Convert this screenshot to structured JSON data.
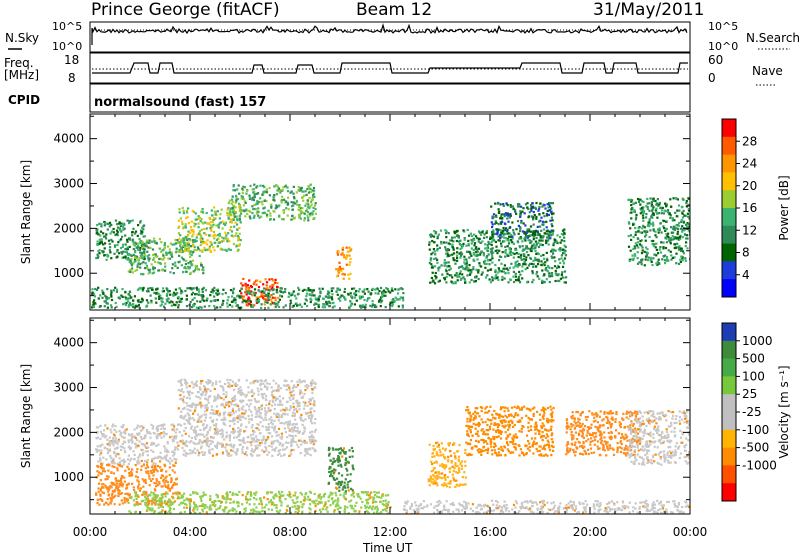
{
  "header": {
    "station": "Prince George (fitACF)",
    "beam": "Beam 12",
    "date": "31/May/2011"
  },
  "noise_panel": {
    "left_label": "N.Sky",
    "right_label": "N.Search",
    "left_top_tick": "10^5",
    "left_bottom_tick": "10^0",
    "right_top_tick": "10^5",
    "right_bottom_tick": "10^0"
  },
  "freq_panel": {
    "left_label_1": "Freq.",
    "left_label_2": "[MHz]",
    "left_top_tick": "18",
    "left_bottom_tick": "8",
    "right_label": "Nave",
    "right_top_tick": "60",
    "right_bottom_tick": "0"
  },
  "cpid_panel": {
    "label": "CPID",
    "program": "normalsound (fast) 157"
  },
  "chart_data": [
    {
      "type": "heatmap",
      "name": "Power",
      "ylabel": "Slant Range [km]",
      "ylim": [
        180,
        4550
      ],
      "yticks": [
        "1000",
        "2000",
        "3000",
        "4000"
      ],
      "xlim": [
        0,
        24
      ],
      "xticks": [
        "00:00",
        "04:00",
        "08:00",
        "12:00",
        "16:00",
        "20:00",
        "00:00"
      ],
      "colorbar_label": "Power [dB]",
      "colorbar_ticks": [
        "28",
        "24",
        "20",
        "16",
        "12",
        "8",
        "4"
      ],
      "colorbar_colors": [
        "#ff0000",
        "#ff5a00",
        "#ff9600",
        "#ffc000",
        "#9acd32",
        "#3cb371",
        "#2e8b57",
        "#006400",
        "#1e3cdc",
        "#0000ff"
      ],
      "echo_regions": [
        {
          "t0": 0.2,
          "t1": 2.2,
          "r0": 1300,
          "r1": 2200,
          "level": 3
        },
        {
          "t0": 1.5,
          "t1": 4.5,
          "r0": 1000,
          "r1": 1800,
          "level": 4
        },
        {
          "t0": 3.5,
          "t1": 6.0,
          "r0": 1500,
          "r1": 2500,
          "level": 5
        },
        {
          "t0": 5.5,
          "t1": 9.0,
          "r0": 2200,
          "r1": 3000,
          "level": 4
        },
        {
          "t0": 6.0,
          "t1": 7.5,
          "r0": 300,
          "r1": 900,
          "level": 8
        },
        {
          "t0": 9.8,
          "t1": 10.4,
          "r0": 900,
          "r1": 1600,
          "level": 7
        },
        {
          "t0": 0.0,
          "t1": 12.5,
          "r0": 250,
          "r1": 700,
          "level": 3
        },
        {
          "t0": 13.5,
          "t1": 19.0,
          "r0": 800,
          "r1": 2000,
          "level": 3
        },
        {
          "t0": 16.0,
          "t1": 18.5,
          "r0": 1800,
          "r1": 2600,
          "level": 2
        },
        {
          "t0": 21.5,
          "t1": 24.0,
          "r0": 1200,
          "r1": 2700,
          "level": 3
        }
      ]
    },
    {
      "type": "heatmap",
      "name": "Velocity",
      "xlabel": "Time UT",
      "ylabel": "Slant Range [km]",
      "ylim": [
        180,
        4550
      ],
      "yticks": [
        "1000",
        "2000",
        "3000",
        "4000"
      ],
      "xlim": [
        0,
        24
      ],
      "xticks": [
        "00:00",
        "04:00",
        "08:00",
        "12:00",
        "16:00",
        "20:00",
        "00:00"
      ],
      "colorbar_label": "Velocity [m s⁻¹]",
      "colorbar_ticks": [
        "1000",
        "500",
        "100",
        "25",
        "-25",
        "-100",
        "-500",
        "-1000"
      ],
      "colorbar_colors": [
        "#1e3cb4",
        "#3c8c3c",
        "#46aa46",
        "#78c83c",
        "#c0c0c0",
        "#c0c0c0",
        "#ffb400",
        "#ff8c00",
        "#ff5000",
        "#ff0000"
      ],
      "echo_regions": [
        {
          "t0": 0.2,
          "t1": 3.5,
          "r0": 1300,
          "r1": 2200,
          "color": "#c8c8c8"
        },
        {
          "t0": 0.2,
          "t1": 3.5,
          "r0": 400,
          "r1": 1300,
          "color": "#ff8c1e"
        },
        {
          "t0": 3.5,
          "t1": 9.0,
          "r0": 1500,
          "r1": 3200,
          "color": "#c8c8c8"
        },
        {
          "t0": 1.5,
          "t1": 12.0,
          "r0": 200,
          "r1": 700,
          "color": "#90d050"
        },
        {
          "t0": 9.5,
          "t1": 10.5,
          "r0": 700,
          "r1": 1700,
          "color": "#3c8c3c"
        },
        {
          "t0": 13.5,
          "t1": 15.0,
          "r0": 800,
          "r1": 1800,
          "color": "#ffb41e"
        },
        {
          "t0": 15.0,
          "t1": 18.5,
          "r0": 1500,
          "r1": 2600,
          "color": "#ff8c00"
        },
        {
          "t0": 19.0,
          "t1": 22.0,
          "r0": 1500,
          "r1": 2500,
          "color": "#ff8c1e"
        },
        {
          "t0": 21.5,
          "t1": 24.0,
          "r0": 1300,
          "r1": 2500,
          "color": "#c8c8c8"
        },
        {
          "t0": 12.5,
          "t1": 24.0,
          "r0": 200,
          "r1": 500,
          "color": "#c8c8c8"
        }
      ]
    }
  ]
}
